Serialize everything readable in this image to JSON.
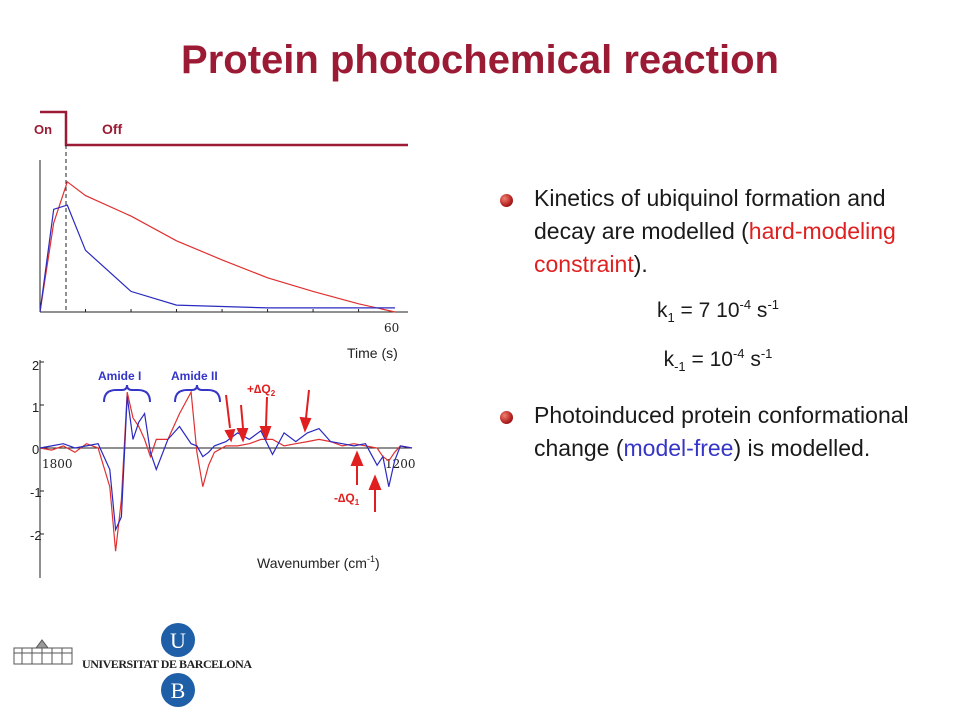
{
  "title": "Protein photochemical reaction",
  "kinetics_chart": {
    "on_label": "On",
    "off_label": "Off",
    "x_tick": "60",
    "xlabel": "Time (s)"
  },
  "spectrum_chart": {
    "y_ticks": [
      "2",
      "1",
      "0",
      "-1",
      "-2"
    ],
    "x_tick_left": "1800",
    "x_tick_right": "1200",
    "xlabel_main": "Wavenumber (cm",
    "xlabel_sup": "-1",
    "xlabel_end": ")",
    "amide1": "Amide I",
    "amide2": "Amide II",
    "plus_dq2_sign": "+",
    "plus_dq2_delta": "∆",
    "plus_dq2_q": "Q",
    "plus_dq2_sub": "2",
    "minus_dq1_sign": "-",
    "minus_dq1_delta": "∆",
    "minus_dq1_q": "Q",
    "minus_dq1_sub": "1"
  },
  "bullet1": {
    "pre": "Kinetics of ubiquinol formation and decay are modelled (",
    "highlight": "hard-modeling constraint",
    "post": ")."
  },
  "eq1": {
    "k": "k",
    "ksub": "1",
    "mid": " = 7 10",
    "exp": "-4",
    "unit": " s",
    "unitexp": "-1"
  },
  "eq2": {
    "k": "k",
    "ksub": "-1",
    "mid": " = 10",
    "exp": "-4",
    "unit": " s",
    "unitexp": "-1"
  },
  "bullet2": {
    "pre": "Photoinduced protein conformational change (",
    "highlight": "model-free",
    "post": ") is modelled."
  },
  "logo": {
    "text": "UNIVERSITAT DE BARCELONA",
    "letter_u": "U",
    "letter_b": "B"
  },
  "colors": {
    "title": "#9b1b35",
    "model_curve": "#e03030",
    "data_curve": "#2a2ac0",
    "annotation_red": "#e02020",
    "annotation_blue": "#3535c8",
    "logo_blue": "#1f5fa8"
  },
  "chart_data": [
    {
      "type": "line",
      "series": [
        {
          "values": [
            0.0,
            0.65,
            0.95,
            0.85,
            0.7,
            0.52,
            0.38,
            0.25,
            0.15,
            0.06,
            0.0
          ]
        },
        {
          "values": [
            0.0,
            0.75,
            0.78,
            0.45,
            0.15,
            0.05,
            0.04,
            0.03,
            0.03,
            0.03,
            0.03
          ]
        }
      ],
      "x": [
        0,
        3,
        6,
        10,
        20,
        30,
        40,
        50,
        60,
        70,
        78
      ],
      "xlabel": "Time (s)"
    },
    {
      "type": "line",
      "x": [
        1820,
        1800,
        1780,
        1760,
        1740,
        1720,
        1700,
        1690,
        1680,
        1670,
        1660,
        1650,
        1640,
        1630,
        1620,
        1600,
        1580,
        1560,
        1550,
        1540,
        1530,
        1520,
        1500,
        1480,
        1460,
        1440,
        1420,
        1400,
        1380,
        1360,
        1340,
        1320,
        1300,
        1280,
        1260,
        1240,
        1230,
        1220,
        1210,
        1200,
        1180
      ],
      "series": [
        {
          "values": [
            0,
            -0.05,
            0.05,
            -0.1,
            0.1,
            0,
            -0.9,
            -2.4,
            -1.2,
            1.3,
            0.7,
            0.5,
            0.2,
            -0.2,
            0.2,
            0.2,
            0.8,
            1.3,
            -0.1,
            -0.9,
            -0.4,
            -0.1,
            0.05,
            0.05,
            0.1,
            0.2,
            0.2,
            0.05,
            0.1,
            0.15,
            0.2,
            0.15,
            0.05,
            0.1,
            0.05,
            0,
            -0.2,
            -0.3,
            -0.1,
            0.05,
            0
          ]
        },
        {
          "values": [
            0,
            0.05,
            0.1,
            0,
            0.05,
            0.1,
            -0.5,
            -1.9,
            -1.6,
            1.2,
            0.2,
            0.6,
            0.8,
            -0.1,
            -0.5,
            0.2,
            0.5,
            0.1,
            0.05,
            -0.2,
            -0.1,
            0.05,
            0.15,
            0.35,
            0.2,
            0.4,
            -0.15,
            0.35,
            0.15,
            0.35,
            0.45,
            0.15,
            0.1,
            0.05,
            0.1,
            -0.4,
            -0.2,
            -0.9,
            -0.3,
            0.05,
            0
          ]
        }
      ],
      "xlabel": "Wavenumber (cm-1)",
      "ylim": [
        -2.8,
        2.2
      ]
    }
  ]
}
